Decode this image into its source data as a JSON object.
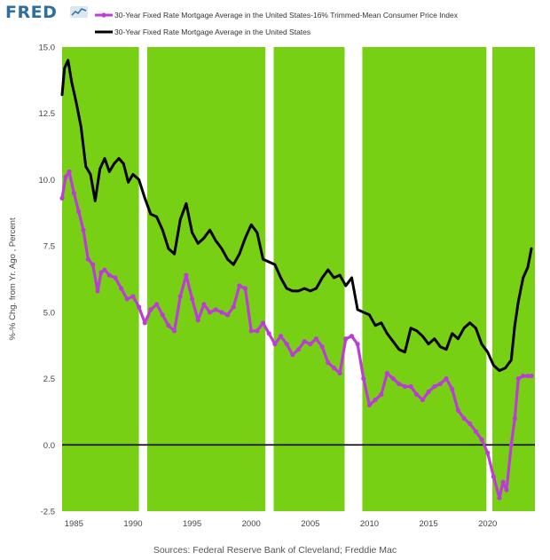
{
  "header": {
    "logo_text": "FRED"
  },
  "source_text": "Sources: Federal Reserve Bank of Cleveland; Freddie Mac",
  "colors": {
    "shade": "#77d014",
    "black_series": "#000000",
    "magenta_series": "#bd3bd6",
    "logo": "#2f6f9f",
    "zero_line": "#000000"
  },
  "chart_data": {
    "type": "line",
    "ylabel": "%-% Chg. from Yr. Ago , Percent",
    "xlim": [
      1984.0,
      2024.0
    ],
    "ylim": [
      -2.5,
      15.0
    ],
    "xticks": [
      1985,
      1990,
      1995,
      2000,
      2005,
      2010,
      2015,
      2020
    ],
    "xtick_labels": [
      "1985",
      "1990",
      "1995",
      "2000",
      "2005",
      "2010",
      "2015",
      "2020"
    ],
    "yticks": [
      -2.5,
      0.0,
      2.5,
      5.0,
      7.5,
      10.0,
      12.5,
      15.0
    ],
    "ytick_labels": [
      "-2.5",
      "0.0",
      "2.5",
      "5.0",
      "7.5",
      "10.0",
      "12.5",
      "15.0"
    ],
    "shaded_periods": [
      [
        1984.0,
        1990.5
      ],
      [
        1991.2,
        2001.2
      ],
      [
        2001.9,
        2007.9
      ],
      [
        2009.4,
        2019.9
      ],
      [
        2020.4,
        2024.0
      ]
    ],
    "zero_line": true,
    "legend_position": "top-left",
    "series": [
      {
        "name": "30-Year Fixed Rate Mortgage Average in the United States-16% Trimmed-Mean Consumer Price Index",
        "color": "#bd3bd6",
        "x": [
          1984.0,
          1984.3,
          1984.6,
          1985.0,
          1985.4,
          1985.8,
          1986.2,
          1986.6,
          1987.0,
          1987.3,
          1987.6,
          1988.0,
          1988.5,
          1989.0,
          1989.5,
          1990.0,
          1990.5,
          1991.0,
          1991.5,
          1992.0,
          1992.5,
          1993.0,
          1993.5,
          1994.0,
          1994.5,
          1995.0,
          1995.5,
          1996.0,
          1996.5,
          1997.0,
          1997.5,
          1998.0,
          1998.5,
          1999.0,
          1999.5,
          2000.0,
          2000.5,
          2001.0,
          2001.5,
          2002.0,
          2002.5,
          2003.0,
          2003.5,
          2004.0,
          2004.5,
          2005.0,
          2005.5,
          2006.0,
          2006.5,
          2007.0,
          2007.5,
          2008.0,
          2008.5,
          2009.0,
          2009.5,
          2010.0,
          2010.5,
          2011.0,
          2011.5,
          2012.0,
          2012.5,
          2013.0,
          2013.5,
          2014.0,
          2014.5,
          2015.0,
          2015.5,
          2016.0,
          2016.5,
          2017.0,
          2017.5,
          2018.0,
          2018.5,
          2019.0,
          2019.5,
          2020.0,
          2020.5,
          2021.0,
          2021.3,
          2021.6,
          2022.0,
          2022.3,
          2022.6,
          2023.0,
          2023.4,
          2023.7
        ],
        "y": [
          9.3,
          10.1,
          10.3,
          9.5,
          8.8,
          8.1,
          7.0,
          6.8,
          5.8,
          6.5,
          6.6,
          6.4,
          6.3,
          5.9,
          5.5,
          5.6,
          5.2,
          4.6,
          5.1,
          5.3,
          4.9,
          4.5,
          4.3,
          5.6,
          6.4,
          5.5,
          4.7,
          5.3,
          5.0,
          5.1,
          5.0,
          4.9,
          5.2,
          6.0,
          5.9,
          4.3,
          4.3,
          4.6,
          4.2,
          3.8,
          4.1,
          3.8,
          3.4,
          3.6,
          3.9,
          3.8,
          4.0,
          3.7,
          3.1,
          2.9,
          2.7,
          4.0,
          4.1,
          3.8,
          2.5,
          1.5,
          1.7,
          1.9,
          2.7,
          2.5,
          2.3,
          2.2,
          2.2,
          1.9,
          1.7,
          2.0,
          2.2,
          2.3,
          2.5,
          2.1,
          1.3,
          1.0,
          0.8,
          0.5,
          0.2,
          -0.3,
          -1.2,
          -2.0,
          -1.4,
          -1.7,
          0.0,
          1.0,
          2.5,
          2.6,
          2.6,
          2.6
        ],
        "marker": "circle"
      },
      {
        "name": "30-Year Fixed Rate Mortgage Average in the United States",
        "color": "#000000",
        "x": [
          1984.0,
          1984.2,
          1984.5,
          1984.8,
          1985.2,
          1985.6,
          1986.0,
          1986.4,
          1986.8,
          1987.2,
          1987.6,
          1988.0,
          1988.4,
          1988.8,
          1989.2,
          1989.6,
          1990.0,
          1990.5,
          1991.0,
          1991.5,
          1992.0,
          1992.5,
          1993.0,
          1993.5,
          1994.0,
          1994.5,
          1995.0,
          1995.5,
          1996.0,
          1996.5,
          1997.0,
          1997.5,
          1998.0,
          1998.5,
          1999.0,
          1999.5,
          2000.0,
          2000.5,
          2001.0,
          2001.5,
          2002.0,
          2002.5,
          2003.0,
          2003.5,
          2004.0,
          2004.5,
          2005.0,
          2005.5,
          2006.0,
          2006.5,
          2007.0,
          2007.5,
          2008.0,
          2008.5,
          2009.0,
          2009.5,
          2010.0,
          2010.5,
          2011.0,
          2011.5,
          2012.0,
          2012.5,
          2013.0,
          2013.5,
          2014.0,
          2014.5,
          2015.0,
          2015.5,
          2016.0,
          2016.5,
          2017.0,
          2017.5,
          2018.0,
          2018.5,
          2019.0,
          2019.5,
          2020.0,
          2020.5,
          2021.0,
          2021.5,
          2022.0,
          2022.3,
          2022.6,
          2023.0,
          2023.4,
          2023.7
        ],
        "y": [
          13.2,
          14.2,
          14.5,
          13.7,
          12.9,
          12.0,
          10.5,
          10.2,
          9.2,
          10.4,
          10.8,
          10.3,
          10.6,
          10.8,
          10.6,
          9.9,
          10.2,
          10.0,
          9.3,
          8.7,
          8.6,
          8.1,
          7.4,
          7.2,
          8.5,
          9.1,
          8.0,
          7.6,
          7.8,
          8.1,
          7.7,
          7.4,
          7.0,
          6.8,
          7.2,
          7.8,
          8.3,
          8.0,
          7.0,
          6.9,
          6.8,
          6.3,
          5.9,
          5.8,
          5.8,
          5.9,
          5.8,
          5.9,
          6.3,
          6.6,
          6.3,
          6.4,
          6.0,
          6.3,
          5.1,
          5.0,
          4.9,
          4.5,
          4.6,
          4.2,
          3.9,
          3.6,
          3.5,
          4.4,
          4.3,
          4.1,
          3.8,
          4.0,
          3.7,
          3.6,
          4.2,
          4.0,
          4.4,
          4.6,
          4.4,
          3.8,
          3.5,
          3.0,
          2.8,
          2.9,
          3.2,
          4.5,
          5.4,
          6.3,
          6.7,
          7.4
        ],
        "marker": "none"
      }
    ]
  }
}
